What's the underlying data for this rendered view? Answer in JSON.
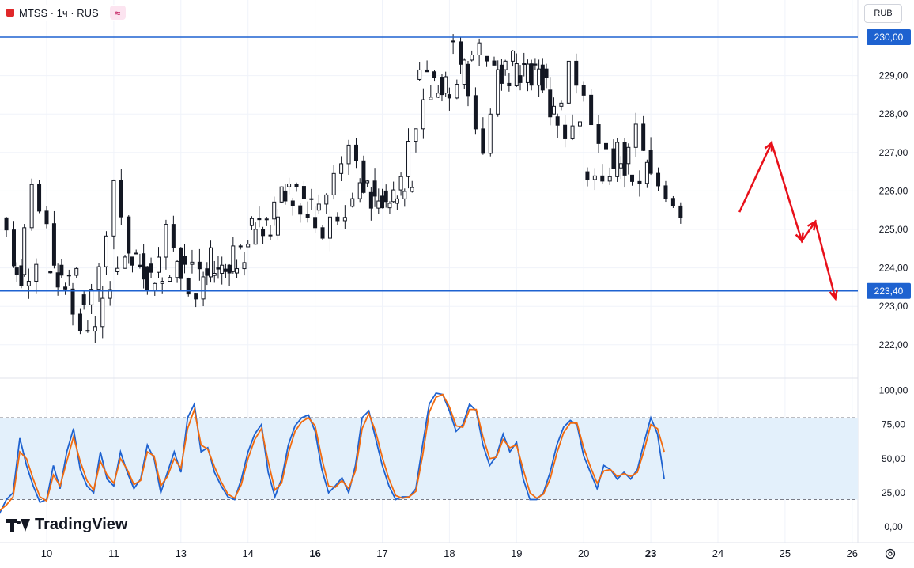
{
  "header": {
    "symbol": "MTSS · 1ч · RUS",
    "compare_glyph": "≈"
  },
  "currency_button": "RUB",
  "logo_text": "TradingView",
  "colors": {
    "up": "#131722",
    "down": "#131722",
    "hline": "#1e62d0",
    "arrow": "#e8101a",
    "stoch_k": "#1e62d0",
    "stoch_d": "#f26b0f",
    "band_fill": "#e3f0fb"
  },
  "chart_data": [
    {
      "type": "candlestick",
      "price_axis": {
        "min": 221.5,
        "max": 230.6,
        "ticks": [
          "230,00",
          "229,00",
          "228,00",
          "227,00",
          "226,00",
          "225,00",
          "224,00",
          "223,00",
          "222,00"
        ]
      },
      "x_ticks": [
        {
          "label": "10",
          "x": 10,
          "bold": false
        },
        {
          "label": "11",
          "x": 11,
          "bold": false
        },
        {
          "label": "13",
          "x": 12,
          "bold": false
        },
        {
          "label": "14",
          "x": 13,
          "bold": false
        },
        {
          "label": "16",
          "x": 14,
          "bold": true
        },
        {
          "label": "17",
          "x": 15,
          "bold": false
        },
        {
          "label": "18",
          "x": 16,
          "bold": false
        },
        {
          "label": "19",
          "x": 17,
          "bold": false
        },
        {
          "label": "20",
          "x": 18,
          "bold": false
        },
        {
          "label": "23",
          "x": 19,
          "bold": true
        },
        {
          "label": "24",
          "x": 20,
          "bold": false
        },
        {
          "label": "25",
          "x": 21,
          "bold": false
        },
        {
          "label": "26",
          "x": 22,
          "bold": false
        }
      ],
      "horizontal_levels": [
        {
          "price": 230.0,
          "label": "230,00"
        },
        {
          "price": 223.4,
          "label": "223,40"
        }
      ],
      "forecast_path": [
        [
          20.32,
          225.45
        ],
        [
          20.8,
          227.25
        ],
        [
          21.25,
          224.7
        ],
        [
          21.45,
          225.2
        ],
        [
          21.75,
          223.2
        ]
      ],
      "days": [
        {
          "x": 9.4,
          "anchors": [
            226.8,
            225.8,
            224.9,
            223.5,
            224.3
          ]
        },
        {
          "x": 10,
          "anchors": [
            224.0,
            225.9,
            225.0,
            223.6,
            223.9
          ]
        },
        {
          "x": 10.5,
          "anchors": [
            223.9,
            223.2,
            222.4,
            222.6,
            223.3
          ]
        },
        {
          "x": 11,
          "anchors": [
            223.3,
            223.9,
            226.3,
            224.4,
            223.9
          ]
        },
        {
          "x": 11.5,
          "anchors": [
            223.9,
            224.3,
            223.4,
            223.8,
            224.1
          ]
        },
        {
          "x": 12,
          "anchors": [
            224.1,
            225.0,
            223.8,
            223.3,
            224.3
          ]
        },
        {
          "x": 12.5,
          "anchors": [
            224.3,
            224.0,
            223.7,
            223.9,
            224.0
          ]
        },
        {
          "x": 13,
          "anchors": [
            224.0,
            224.3,
            224.6,
            224.9,
            225.1
          ]
        },
        {
          "x": 13.5,
          "anchors": [
            225.1,
            225.5,
            226.2,
            225.9,
            226.0
          ]
        },
        {
          "x": 14,
          "anchors": [
            226.0,
            225.4,
            224.8,
            225.2,
            225.5
          ]
        },
        {
          "x": 14.5,
          "anchors": [
            225.5,
            226.2,
            227.4,
            225.9,
            225.6
          ]
        },
        {
          "x": 15,
          "anchors": [
            225.6,
            226.4,
            225.5,
            225.9,
            226.0
          ]
        },
        {
          "x": 15.5,
          "anchors": [
            226.0,
            226.6,
            227.8,
            228.4,
            228.9
          ]
        },
        {
          "x": 16,
          "anchors": [
            228.9,
            229.1,
            228.4,
            229.6,
            229.9
          ]
        },
        {
          "x": 16.5,
          "anchors": [
            229.9,
            228.5,
            227.0,
            229.0,
            229.5
          ]
        },
        {
          "x": 17,
          "anchors": [
            229.5,
            228.8,
            229.2,
            228.9,
            229.0
          ]
        },
        {
          "x": 17.5,
          "anchors": [
            229.0,
            229.5,
            228.2,
            227.5,
            228.0
          ]
        },
        {
          "x": 18,
          "anchors": [
            228.0,
            229.1,
            228.7,
            227.2,
            226.5
          ]
        },
        {
          "x": 18.5,
          "anchors": [
            226.5,
            226.0,
            227.1,
            226.0,
            226.6
          ]
        },
        {
          "x": 19,
          "anchors": [
            226.6,
            227.6,
            226.3,
            226.0,
            225.5
          ]
        }
      ]
    },
    {
      "type": "line",
      "indicator": "stochastic",
      "y_axis": {
        "min": 0,
        "max": 100,
        "ticks": [
          "100,00",
          "75,00",
          "50,00",
          "25,00",
          "0,00"
        ]
      },
      "band": [
        20,
        80
      ],
      "series": [
        {
          "color_key": "stoch_k",
          "points": [
            [
              9,
              28
            ],
            [
              9.1,
              26
            ],
            [
              9.2,
              12
            ],
            [
              9.3,
              10
            ],
            [
              9.4,
              20
            ],
            [
              9.5,
              25
            ],
            [
              9.6,
              65
            ],
            [
              9.7,
              45
            ],
            [
              9.8,
              30
            ],
            [
              9.9,
              18
            ],
            [
              10.0,
              20
            ],
            [
              10.1,
              45
            ],
            [
              10.2,
              28
            ],
            [
              10.3,
              55
            ],
            [
              10.4,
              72
            ],
            [
              10.5,
              42
            ],
            [
              10.6,
              30
            ],
            [
              10.7,
              25
            ],
            [
              10.8,
              55
            ],
            [
              10.9,
              35
            ],
            [
              11.0,
              30
            ],
            [
              11.1,
              55
            ],
            [
              11.2,
              40
            ],
            [
              11.3,
              28
            ],
            [
              11.4,
              35
            ],
            [
              11.5,
              60
            ],
            [
              11.6,
              50
            ],
            [
              11.7,
              25
            ],
            [
              11.8,
              40
            ],
            [
              11.9,
              55
            ],
            [
              12.0,
              40
            ],
            [
              12.1,
              80
            ],
            [
              12.2,
              90
            ],
            [
              12.3,
              55
            ],
            [
              12.4,
              58
            ],
            [
              12.5,
              40
            ],
            [
              12.6,
              30
            ],
            [
              12.7,
              22
            ],
            [
              12.8,
              20
            ],
            [
              12.9,
              35
            ],
            [
              13.0,
              55
            ],
            [
              13.1,
              68
            ],
            [
              13.2,
              75
            ],
            [
              13.3,
              40
            ],
            [
              13.4,
              22
            ],
            [
              13.5,
              35
            ],
            [
              13.6,
              60
            ],
            [
              13.7,
              74
            ],
            [
              13.8,
              80
            ],
            [
              13.9,
              82
            ],
            [
              14.0,
              70
            ],
            [
              14.1,
              42
            ],
            [
              14.2,
              25
            ],
            [
              14.3,
              30
            ],
            [
              14.4,
              36
            ],
            [
              14.5,
              25
            ],
            [
              14.6,
              45
            ],
            [
              14.7,
              80
            ],
            [
              14.8,
              85
            ],
            [
              14.9,
              65
            ],
            [
              15.0,
              45
            ],
            [
              15.1,
              30
            ],
            [
              15.2,
              20
            ],
            [
              15.3,
              22
            ],
            [
              15.4,
              22
            ],
            [
              15.5,
              28
            ],
            [
              15.6,
              60
            ],
            [
              15.7,
              90
            ],
            [
              15.8,
              98
            ],
            [
              15.9,
              97
            ],
            [
              16.0,
              85
            ],
            [
              16.1,
              70
            ],
            [
              16.2,
              75
            ],
            [
              16.3,
              90
            ],
            [
              16.4,
              85
            ],
            [
              16.5,
              60
            ],
            [
              16.6,
              45
            ],
            [
              16.7,
              52
            ],
            [
              16.8,
              68
            ],
            [
              16.9,
              55
            ],
            [
              17.0,
              62
            ],
            [
              17.1,
              35
            ],
            [
              17.2,
              20
            ],
            [
              17.3,
              20
            ],
            [
              17.4,
              25
            ],
            [
              17.5,
              40
            ],
            [
              17.6,
              60
            ],
            [
              17.7,
              73
            ],
            [
              17.8,
              78
            ],
            [
              17.9,
              75
            ],
            [
              18.0,
              52
            ],
            [
              18.1,
              40
            ],
            [
              18.2,
              28
            ],
            [
              18.3,
              45
            ],
            [
              18.4,
              42
            ],
            [
              18.5,
              35
            ],
            [
              18.6,
              40
            ],
            [
              18.7,
              35
            ],
            [
              18.8,
              42
            ],
            [
              18.9,
              62
            ],
            [
              19.0,
              80
            ],
            [
              19.1,
              68
            ],
            [
              19.2,
              35
            ]
          ]
        },
        {
          "color_key": "stoch_d",
          "points": [
            [
              9,
              25
            ],
            [
              9.1,
              24
            ],
            [
              9.2,
              15
            ],
            [
              9.3,
              12
            ],
            [
              9.4,
              16
            ],
            [
              9.5,
              22
            ],
            [
              9.6,
              55
            ],
            [
              9.7,
              50
            ],
            [
              9.8,
              35
            ],
            [
              9.9,
              22
            ],
            [
              10.0,
              19
            ],
            [
              10.1,
              38
            ],
            [
              10.2,
              30
            ],
            [
              10.3,
              48
            ],
            [
              10.4,
              66
            ],
            [
              10.5,
              48
            ],
            [
              10.6,
              34
            ],
            [
              10.7,
              27
            ],
            [
              10.8,
              48
            ],
            [
              10.9,
              38
            ],
            [
              11.0,
              32
            ],
            [
              11.1,
              50
            ],
            [
              11.2,
              42
            ],
            [
              11.3,
              31
            ],
            [
              11.4,
              34
            ],
            [
              11.5,
              55
            ],
            [
              11.6,
              52
            ],
            [
              11.7,
              30
            ],
            [
              11.8,
              37
            ],
            [
              11.9,
              50
            ],
            [
              12.0,
              43
            ],
            [
              12.1,
              72
            ],
            [
              12.2,
              86
            ],
            [
              12.3,
              60
            ],
            [
              12.4,
              57
            ],
            [
              12.5,
              44
            ],
            [
              12.6,
              33
            ],
            [
              12.7,
              24
            ],
            [
              12.8,
              21
            ],
            [
              12.9,
              31
            ],
            [
              13.0,
              50
            ],
            [
              13.1,
              64
            ],
            [
              13.2,
              72
            ],
            [
              13.3,
              48
            ],
            [
              13.4,
              27
            ],
            [
              13.5,
              32
            ],
            [
              13.6,
              54
            ],
            [
              13.7,
              70
            ],
            [
              13.8,
              77
            ],
            [
              13.9,
              80
            ],
            [
              14.0,
              74
            ],
            [
              14.1,
              50
            ],
            [
              14.2,
              30
            ],
            [
              14.3,
              29
            ],
            [
              14.4,
              34
            ],
            [
              14.5,
              28
            ],
            [
              14.6,
              41
            ],
            [
              14.7,
              72
            ],
            [
              14.8,
              83
            ],
            [
              14.9,
              70
            ],
            [
              15.0,
              51
            ],
            [
              15.1,
              35
            ],
            [
              15.2,
              23
            ],
            [
              15.3,
              21
            ],
            [
              15.4,
              22
            ],
            [
              15.5,
              26
            ],
            [
              15.6,
              52
            ],
            [
              15.7,
              84
            ],
            [
              15.8,
              95
            ],
            [
              15.9,
              97
            ],
            [
              16.0,
              88
            ],
            [
              16.1,
              74
            ],
            [
              16.2,
              73
            ],
            [
              16.3,
              86
            ],
            [
              16.4,
              86
            ],
            [
              16.5,
              66
            ],
            [
              16.6,
              50
            ],
            [
              16.7,
              51
            ],
            [
              16.8,
              64
            ],
            [
              16.9,
              58
            ],
            [
              17.0,
              60
            ],
            [
              17.1,
              42
            ],
            [
              17.2,
              25
            ],
            [
              17.3,
              21
            ],
            [
              17.4,
              24
            ],
            [
              17.5,
              35
            ],
            [
              17.6,
              54
            ],
            [
              17.7,
              69
            ],
            [
              17.8,
              76
            ],
            [
              17.9,
              76
            ],
            [
              18.0,
              58
            ],
            [
              18.1,
              44
            ],
            [
              18.2,
              32
            ],
            [
              18.3,
              41
            ],
            [
              18.4,
              42
            ],
            [
              18.5,
              37
            ],
            [
              18.6,
              39
            ],
            [
              18.7,
              37
            ],
            [
              18.8,
              40
            ],
            [
              18.9,
              56
            ],
            [
              19.0,
              75
            ],
            [
              19.1,
              72
            ],
            [
              19.2,
              55
            ]
          ]
        }
      ]
    }
  ]
}
